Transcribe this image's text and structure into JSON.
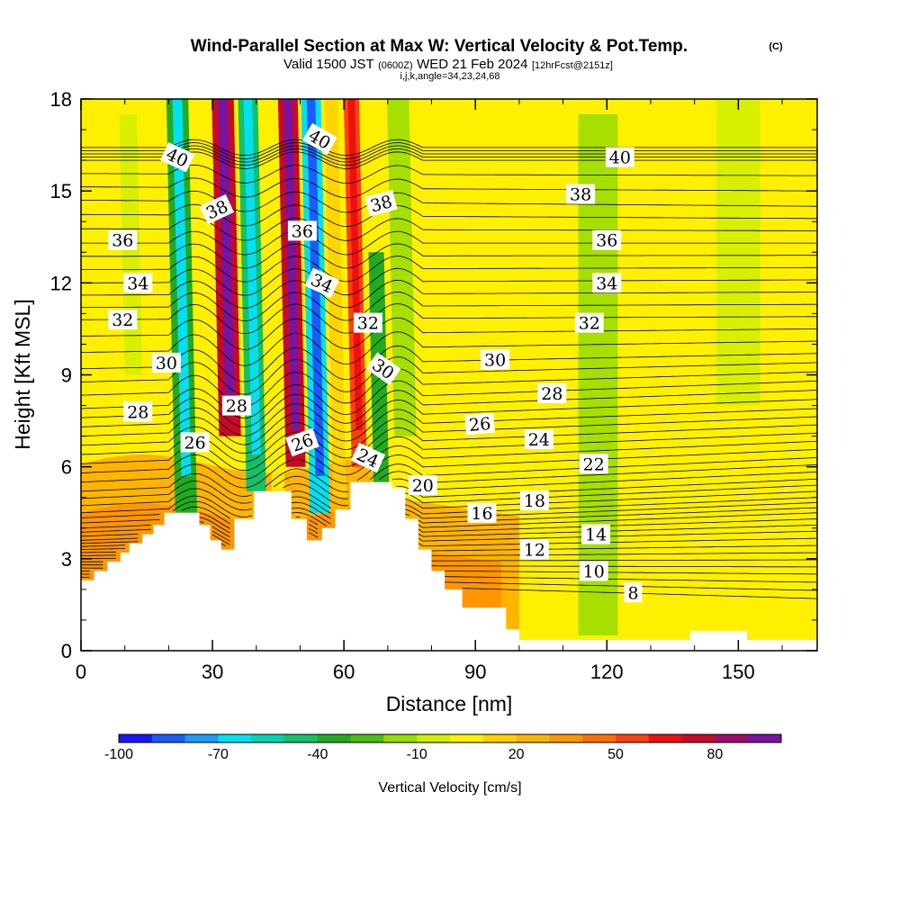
{
  "chart_data": {
    "type": "contour",
    "title": "Wind-Parallel Section at Max W: Vertical Velocity & Pot.Temp.",
    "title_tag": "(C)",
    "subtitle_a": "Valid 1500 JST",
    "subtitle_b": "(0600Z)",
    "subtitle_c": "WED 21 Feb 2024",
    "subtitle_d": "[12hrFcst@2151z]",
    "subtitle_line2": "i,j,k,angle=34,23,24,68",
    "xlabel": "Distance [nm]",
    "ylabel": "Height [Kft MSL]",
    "xlim": [
      0,
      168
    ],
    "ylim": [
      0,
      18
    ],
    "x_ticks": [
      "0",
      "30",
      "60",
      "90",
      "120",
      "150"
    ],
    "y_ticks": [
      "0",
      "3",
      "6",
      "9",
      "12",
      "15",
      "18"
    ],
    "x_tick_values": [
      0,
      30,
      60,
      90,
      120,
      150
    ],
    "y_tick_values": [
      0,
      3,
      6,
      9,
      12,
      15,
      18
    ],
    "fill_variable": "Vertical Velocity [cm/s]",
    "colorbar": {
      "title": "Vertical Velocity [cm/s]",
      "tick_labels": [
        "-100",
        "-70",
        "-40",
        "-10",
        "20",
        "50",
        "80"
      ],
      "tick_values": [
        -100,
        -70,
        -40,
        -10,
        20,
        50,
        80
      ],
      "range": [
        -100,
        100
      ],
      "colors": [
        "#1a14ff",
        "#1a5cff",
        "#1a9cff",
        "#00e0f0",
        "#00d2b0",
        "#14c068",
        "#22aa22",
        "#44c010",
        "#96dc00",
        "#d2ee00",
        "#fff000",
        "#ffd000",
        "#ffb400",
        "#ff9600",
        "#ff6e00",
        "#ff4010",
        "#ee0f0f",
        "#c80a28",
        "#a00a6e",
        "#7814a0"
      ]
    },
    "vertical_velocity_bands": [
      {
        "center_x": 12,
        "width": 4,
        "value": -10,
        "y_range": [
          9,
          17.5
        ]
      },
      {
        "center_x": 24,
        "width": 5,
        "value": -40,
        "y_range": [
          4.5,
          18
        ]
      },
      {
        "center_x": 29,
        "width": 3,
        "value": 5,
        "y_range": [
          7,
          18
        ]
      },
      {
        "center_x": 34,
        "width": 5,
        "value": 75,
        "y_range": [
          7,
          18
        ]
      },
      {
        "center_x": 40,
        "width": 4.5,
        "value": -45,
        "y_range": [
          3.5,
          18
        ]
      },
      {
        "center_x": 45,
        "width": 3,
        "value": 5,
        "y_range": [
          5,
          18
        ]
      },
      {
        "center_x": 49,
        "width": 4.5,
        "value": 75,
        "y_range": [
          6,
          18
        ]
      },
      {
        "center_x": 54.5,
        "width": 4.5,
        "value": -65,
        "y_range": [
          4.5,
          18
        ]
      },
      {
        "center_x": 59,
        "width": 3,
        "value": 10,
        "y_range": [
          5,
          18
        ]
      },
      {
        "center_x": 63.5,
        "width": 3.5,
        "value": 50,
        "y_range": [
          6,
          18
        ]
      },
      {
        "center_x": 68.5,
        "width": 3.5,
        "value": -35,
        "y_range": [
          5.5,
          13
        ]
      },
      {
        "center_x": 74,
        "width": 5,
        "value": -12,
        "y_range": [
          7,
          18
        ]
      },
      {
        "center_x": 118,
        "width": 9,
        "value": -12,
        "y_range": [
          0.5,
          17.5
        ]
      },
      {
        "center_x": 150,
        "width": 10,
        "value": -10,
        "y_range": [
          8,
          18
        ]
      }
    ],
    "low_level_warm_values": {
      "west": 25,
      "middle": 20,
      "east": 15
    },
    "terrain": [
      [
        0,
        2.3
      ],
      [
        3,
        2.3
      ],
      [
        3,
        2.6
      ],
      [
        6,
        2.6
      ],
      [
        6,
        2.9
      ],
      [
        9,
        2.9
      ],
      [
        9,
        3.2
      ],
      [
        11,
        3.2
      ],
      [
        11,
        3.5
      ],
      [
        14,
        3.5
      ],
      [
        14,
        3.8
      ],
      [
        16.5,
        3.8
      ],
      [
        16.5,
        4.1
      ],
      [
        19,
        4.1
      ],
      [
        19,
        4.5
      ],
      [
        27,
        4.5
      ],
      [
        27,
        4.1
      ],
      [
        29.5,
        4.1
      ],
      [
        29.5,
        3.6
      ],
      [
        32,
        3.6
      ],
      [
        32,
        3.3
      ],
      [
        35,
        3.3
      ],
      [
        35,
        4.3
      ],
      [
        39.5,
        4.3
      ],
      [
        39.5,
        5.2
      ],
      [
        48,
        5.2
      ],
      [
        48,
        4.3
      ],
      [
        51.5,
        4.3
      ],
      [
        51.5,
        3.6
      ],
      [
        55,
        3.6
      ],
      [
        55,
        4.0
      ],
      [
        58,
        4.0
      ],
      [
        58,
        4.6
      ],
      [
        61.5,
        4.6
      ],
      [
        61.5,
        5.5
      ],
      [
        71,
        5.5
      ],
      [
        71,
        5.3
      ],
      [
        74,
        5.3
      ],
      [
        74,
        4.3
      ],
      [
        77,
        4.3
      ],
      [
        77,
        3.3
      ],
      [
        80,
        3.3
      ],
      [
        80,
        2.6
      ],
      [
        83,
        2.6
      ],
      [
        83,
        2.0
      ],
      [
        87,
        2.0
      ],
      [
        87,
        1.4
      ],
      [
        97,
        1.4
      ],
      [
        97,
        0.7
      ],
      [
        100,
        0.7
      ],
      [
        100,
        0.35
      ],
      [
        139,
        0.35
      ],
      [
        139,
        0.65
      ],
      [
        152,
        0.65
      ],
      [
        152,
        0.35
      ],
      [
        168,
        0.35
      ]
    ],
    "theta_contours": {
      "levels": [
        8,
        10,
        12,
        14,
        16,
        18,
        20,
        22,
        24,
        26,
        28,
        30,
        32,
        34,
        36,
        38,
        40
      ],
      "west_heights": [
        2.4,
        2.7,
        3.0,
        3.3,
        3.6,
        4.0,
        4.5,
        5.2,
        6.1,
        7.0,
        7.9,
        9.2,
        10.8,
        12.0,
        13.3,
        14.7,
        16.0
      ],
      "east_heights": [
        1.7,
        2.5,
        3.2,
        3.9,
        4.5,
        5.0,
        5.6,
        6.3,
        7.1,
        7.9,
        8.8,
        9.7,
        10.9,
        12.1,
        13.3,
        14.5,
        16.0
      ]
    },
    "contour_labels": [
      {
        "text": "40",
        "x": 22,
        "y": 16.1,
        "angle": 25
      },
      {
        "text": "38",
        "x": 31,
        "y": 14.4,
        "angle": -25
      },
      {
        "text": "36",
        "x": 9.5,
        "y": 13.4,
        "angle": 0
      },
      {
        "text": "34",
        "x": 13,
        "y": 12.0,
        "angle": 0
      },
      {
        "text": "32",
        "x": 9.5,
        "y": 10.8,
        "angle": 0
      },
      {
        "text": "30",
        "x": 19.5,
        "y": 9.4,
        "angle": 0
      },
      {
        "text": "28",
        "x": 13,
        "y": 7.8,
        "angle": 0
      },
      {
        "text": "28",
        "x": 35.5,
        "y": 8.0,
        "angle": 0
      },
      {
        "text": "26",
        "x": 26,
        "y": 6.8,
        "angle": 0
      },
      {
        "text": "40",
        "x": 54.5,
        "y": 16.7,
        "angle": 30
      },
      {
        "text": "36",
        "x": 50.5,
        "y": 13.7,
        "angle": 0
      },
      {
        "text": "34",
        "x": 55,
        "y": 12.0,
        "angle": 25
      },
      {
        "text": "26",
        "x": 50.5,
        "y": 6.8,
        "angle": -20
      },
      {
        "text": "38",
        "x": 68.5,
        "y": 14.6,
        "angle": -15
      },
      {
        "text": "32",
        "x": 65.5,
        "y": 10.7,
        "angle": 0
      },
      {
        "text": "30",
        "x": 69,
        "y": 9.2,
        "angle": 35
      },
      {
        "text": "24",
        "x": 65.5,
        "y": 6.3,
        "angle": 25
      },
      {
        "text": "20",
        "x": 78,
        "y": 5.4,
        "angle": 0
      },
      {
        "text": "30",
        "x": 94.5,
        "y": 9.5,
        "angle": 0
      },
      {
        "text": "26",
        "x": 91,
        "y": 7.4,
        "angle": -5
      },
      {
        "text": "28",
        "x": 107.5,
        "y": 8.4,
        "angle": 0
      },
      {
        "text": "24",
        "x": 104.5,
        "y": 6.9,
        "angle": 0
      },
      {
        "text": "22",
        "x": 117,
        "y": 6.1,
        "angle": 0
      },
      {
        "text": "16",
        "x": 91.5,
        "y": 4.5,
        "angle": 0
      },
      {
        "text": "18",
        "x": 103.5,
        "y": 4.9,
        "angle": 0
      },
      {
        "text": "14",
        "x": 117.5,
        "y": 3.8,
        "angle": 0
      },
      {
        "text": "12",
        "x": 103.5,
        "y": 3.3,
        "angle": 0
      },
      {
        "text": "10",
        "x": 117,
        "y": 2.6,
        "angle": 0
      },
      {
        "text": "8",
        "x": 126,
        "y": 1.9,
        "angle": 0
      },
      {
        "text": "40",
        "x": 123,
        "y": 16.1,
        "angle": 0
      },
      {
        "text": "38",
        "x": 114,
        "y": 14.9,
        "angle": 0
      },
      {
        "text": "36",
        "x": 120,
        "y": 13.4,
        "angle": 0
      },
      {
        "text": "34",
        "x": 120,
        "y": 12.0,
        "angle": 0
      },
      {
        "text": "32",
        "x": 116,
        "y": 10.7,
        "angle": 0
      }
    ]
  }
}
